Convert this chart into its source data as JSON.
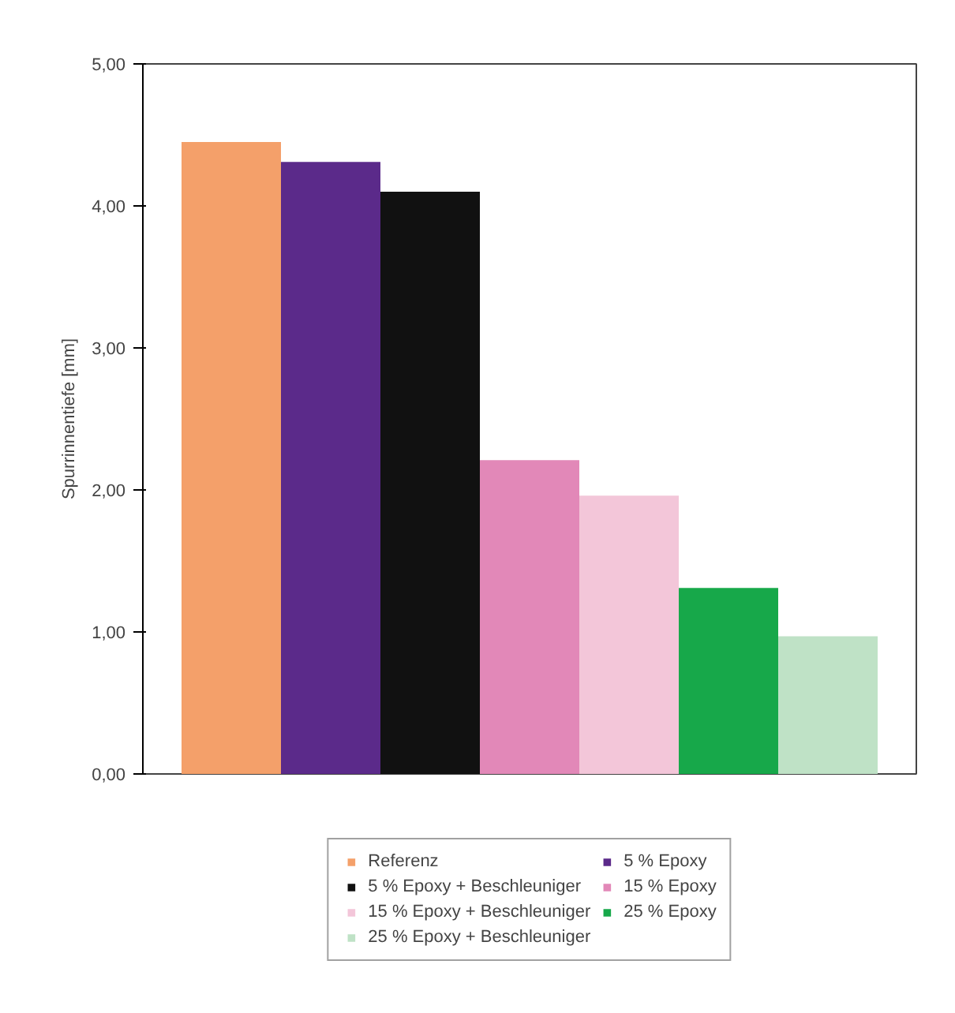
{
  "chart_data": {
    "type": "bar",
    "ylabel": "Spurrinnentiefe [mm]",
    "categories": [
      null
    ],
    "series": [
      {
        "name": "Referenz",
        "color": "#f4a06a",
        "values": [
          4.45
        ]
      },
      {
        "name": "5 % Epoxy",
        "color": "#5b2a8a",
        "values": [
          4.31
        ]
      },
      {
        "name": "5 % Epoxy + Beschleuniger",
        "color": "#111111",
        "values": [
          4.1
        ]
      },
      {
        "name": "15 % Epoxy",
        "color": "#e288b8",
        "values": [
          2.21
        ]
      },
      {
        "name": "15 % Epoxy + Beschleuniger",
        "color": "#f3c6d9",
        "values": [
          1.96
        ]
      },
      {
        "name": "25 % Epoxy",
        "color": "#17a84a",
        "values": [
          1.31
        ]
      },
      {
        "name": "25 % Epoxy + Beschleuniger",
        "color": "#bfe2c6",
        "values": [
          0.97
        ]
      }
    ],
    "ylim": [
      0,
      5
    ],
    "yticks": [
      {
        "value": 0,
        "label": "0,00"
      },
      {
        "value": 1,
        "label": "1,00"
      },
      {
        "value": 2,
        "label": "2,00"
      },
      {
        "value": 3,
        "label": "3,00"
      },
      {
        "value": 4,
        "label": "4,00"
      },
      {
        "value": 5,
        "label": "5,00"
      }
    ],
    "grid": false,
    "legend": "bottom"
  }
}
